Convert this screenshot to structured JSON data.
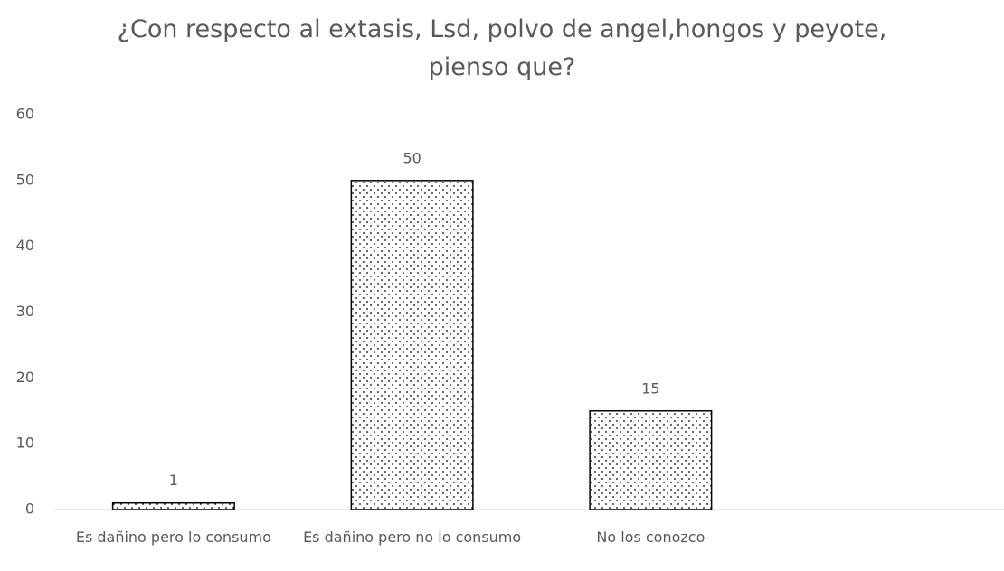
{
  "chart_data": {
    "type": "bar",
    "title": "¿Con respecto al extasis, Lsd, polvo de angel,hongos y peyote, pienso que?",
    "categories": [
      "Es dañino pero lo consumo",
      "Es dañino pero no lo consumo",
      "No los conozco",
      null
    ],
    "values": [
      1,
      50,
      15,
      null
    ],
    "color": "#000000",
    "ylim": [
      0,
      60
    ],
    "yticks": [
      0,
      10,
      20,
      30,
      40,
      50,
      60
    ],
    "grid": false
  }
}
